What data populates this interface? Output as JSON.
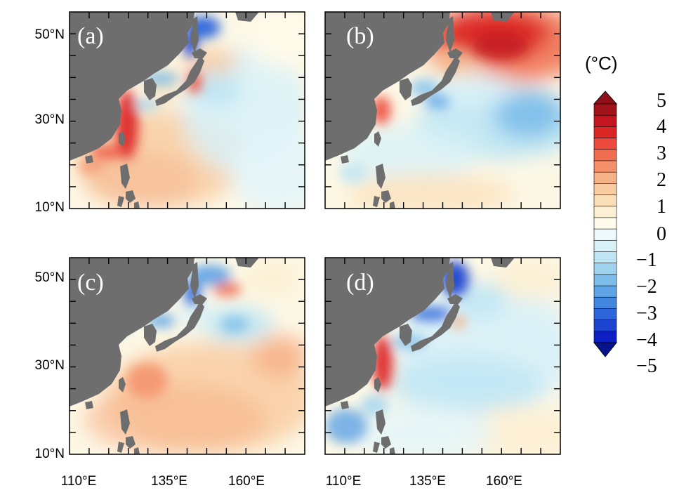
{
  "panels": [
    {
      "id": "a",
      "label": "(a)"
    },
    {
      "id": "b",
      "label": "(b)"
    },
    {
      "id": "c",
      "label": "(c)"
    },
    {
      "id": "d",
      "label": "(d)"
    }
  ],
  "axes": {
    "y_ticks": [
      "50°N",
      "30°N",
      "10°N"
    ],
    "x_ticks": [
      "110°E",
      "135°E",
      "160°E"
    ],
    "lat_range": [
      10,
      55
    ],
    "lon_range": [
      100,
      176
    ]
  },
  "colorbar": {
    "title": "(°C)",
    "labels": [
      "5",
      "4",
      "3",
      "2",
      "1",
      "0",
      "−1",
      "−2",
      "−3",
      "−4",
      "−5"
    ],
    "levels": [
      -5,
      -4.5,
      -4,
      -3.5,
      -3,
      -2.5,
      -2,
      -1.5,
      -1,
      -0.5,
      0,
      0.5,
      1,
      1.5,
      2,
      2.5,
      3,
      3.5,
      4,
      4.5,
      5
    ],
    "colors_top_to_bottom": [
      "#a1121b",
      "#c3161f",
      "#dc2626",
      "#ec4a3c",
      "#f06e4f",
      "#f4916b",
      "#f7b388",
      "#f9cca2",
      "#fbdfb8",
      "#fdefd3",
      "#fffbea",
      "#eef9fb",
      "#d8f1f8",
      "#bde5f4",
      "#9fd3ef",
      "#7dbdea",
      "#5ea3e6",
      "#4286e0",
      "#2d66da",
      "#1c44d0",
      "#0d1fc4"
    ],
    "arrow_top": "#8e0f18",
    "arrow_bottom": "#07128f"
  },
  "colors": {
    "land": "#6e6e6e",
    "ocean_neutral": "#fdf8e6"
  }
}
